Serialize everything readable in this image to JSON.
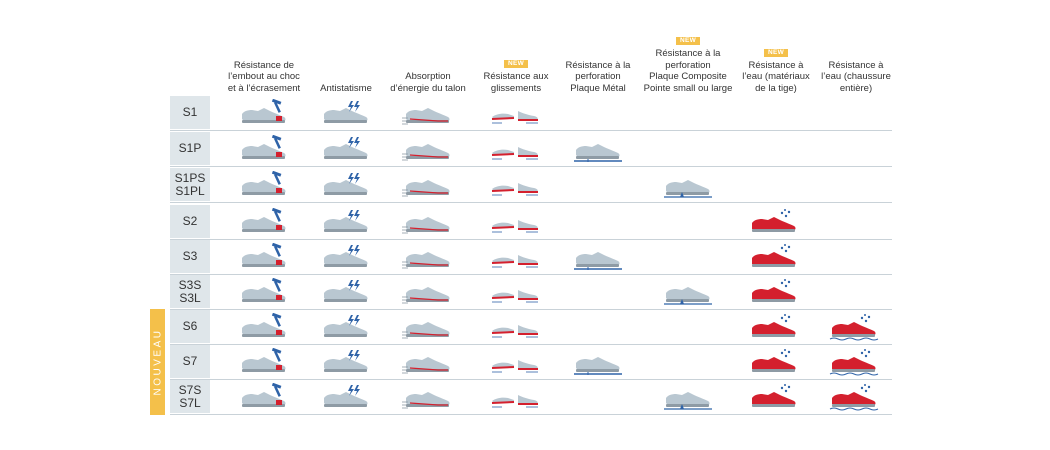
{
  "side_label": "NOUVEAU",
  "columns": [
    {
      "key": "impact",
      "label": "Résistance de\nl’embout au choc\net à l’écrasement",
      "badge": "",
      "icon": "shoe-hammer-icon"
    },
    {
      "key": "antistatic",
      "label": "Antistatisme",
      "badge": "",
      "icon": "shoe-lightning-icon"
    },
    {
      "key": "heel",
      "label": "Absorption\nd’énergie du talon",
      "badge": "",
      "icon": "shoe-heel-absorption-icon"
    },
    {
      "key": "slip",
      "label": "Résistance aux\nglissements",
      "badge": "NEW",
      "icon": "slip-resistance-icon"
    },
    {
      "key": "metal",
      "label": "Résistance à la\nperforation\nPlaque Métal",
      "badge": "",
      "icon": "shoe-metal-plate-icon"
    },
    {
      "key": "composite",
      "label": "Résistance à la\nperforation\nPlaque Composite\nPointe small ou large",
      "badge": "NEW",
      "icon": "shoe-composite-plate-icon"
    },
    {
      "key": "water_upper",
      "label": "Résistance à\nl’eau (matériaux\nde la tige)",
      "badge": "NEW",
      "icon": "red-shoe-water-icon"
    },
    {
      "key": "water_full",
      "label": "Résistance à\nl’eau (chaussure\nentière)",
      "badge": "",
      "icon": "red-shoe-full-water-icon"
    }
  ],
  "rows": [
    {
      "label": "S1",
      "features": [
        "impact",
        "antistatic",
        "heel",
        "slip"
      ]
    },
    {
      "label": "S1P",
      "features": [
        "impact",
        "antistatic",
        "heel",
        "slip",
        "metal"
      ]
    },
    {
      "label": "S1PS\nS1PL",
      "features": [
        "impact",
        "antistatic",
        "heel",
        "slip",
        "composite"
      ]
    },
    {
      "label": "S2",
      "features": [
        "impact",
        "antistatic",
        "heel",
        "slip",
        "water_upper"
      ]
    },
    {
      "label": "S3",
      "features": [
        "impact",
        "antistatic",
        "heel",
        "slip",
        "metal",
        "water_upper"
      ]
    },
    {
      "label": "S3S\nS3L",
      "features": [
        "impact",
        "antistatic",
        "heel",
        "slip",
        "composite",
        "water_upper"
      ]
    },
    {
      "label": "S6",
      "features": [
        "impact",
        "antistatic",
        "heel",
        "slip",
        "water_upper",
        "water_full"
      ]
    },
    {
      "label": "S7",
      "features": [
        "impact",
        "antistatic",
        "heel",
        "slip",
        "metal",
        "water_upper",
        "water_full"
      ]
    },
    {
      "label": "S7S\nS7L",
      "features": [
        "impact",
        "antistatic",
        "heel",
        "slip",
        "composite",
        "water_upper",
        "water_full"
      ]
    }
  ],
  "colors": {
    "shoe": "#b9c7d1",
    "shoe_sole": "#8e9ba5",
    "blue": "#2f63a8",
    "red": "#d4202e",
    "accent": "#f4c04a"
  }
}
